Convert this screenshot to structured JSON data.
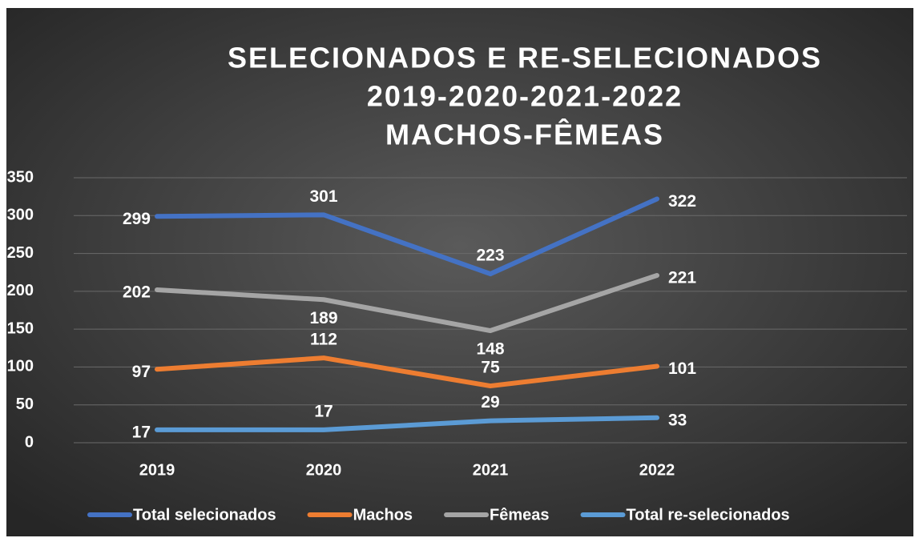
{
  "chart_data": {
    "type": "line",
    "title": [
      "SELECIONADOS E RE-SELECIONADOS",
      "2019-2020-2021-2022",
      "MACHOS-FÊMEAS"
    ],
    "categories": [
      "2019",
      "2020",
      "2021",
      "2022",
      null
    ],
    "series": [
      {
        "name": "Total selecionados",
        "color": "#4472c4",
        "values": [
          299,
          301,
          223,
          322,
          null
        ]
      },
      {
        "name": "Machos",
        "color": "#ed7d31",
        "values": [
          97,
          112,
          75,
          101,
          null
        ]
      },
      {
        "name": "Fêmeas",
        "color": "#a5a5a5",
        "values": [
          202,
          189,
          148,
          221,
          null
        ]
      },
      {
        "name": "Total re-selecionados",
        "color": "#5b9bd5",
        "values": [
          17,
          17,
          29,
          33,
          null
        ]
      }
    ],
    "ylim": [
      0,
      350
    ],
    "yticks": [
      0,
      50,
      100,
      150,
      200,
      250,
      300,
      350
    ],
    "grid": true,
    "legend": "bottom"
  }
}
